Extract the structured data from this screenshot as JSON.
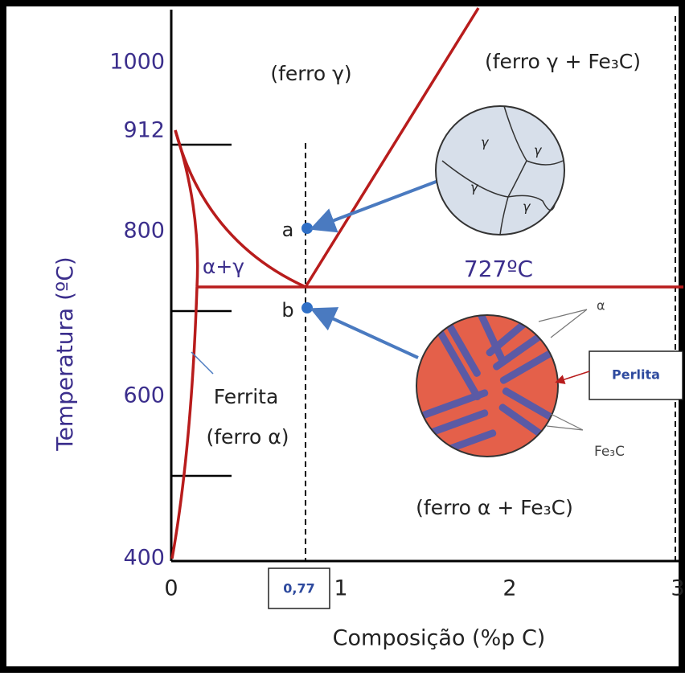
{
  "axes": {
    "y_label": "Temperatura (ºC)",
    "x_label": "Composição (%p C)",
    "y_ticks": [
      "1000",
      "912",
      "800",
      "600",
      "400"
    ],
    "x_ticks": [
      "0",
      "1",
      "2",
      "3"
    ],
    "x_marker": "0,77"
  },
  "regions": {
    "gamma": "(ferro γ)",
    "gamma_cementite": "(ferro γ + Fe₃C)",
    "alpha_gamma": "α+γ",
    "ferrite": "Ferrita",
    "ferrite_alpha": "(ferro α)",
    "alpha_cementite": "(ferro α + Fe₃C)",
    "eutectoid": "727ºC"
  },
  "points": {
    "a": "a",
    "b": "b"
  },
  "microstructures": {
    "austenite_grains": [
      "γ",
      "γ",
      "γ",
      "γ"
    ],
    "pearlite_alpha": "α",
    "pearlite_cementite": "Fe₃C",
    "pearlite_box": "Perlita"
  }
}
